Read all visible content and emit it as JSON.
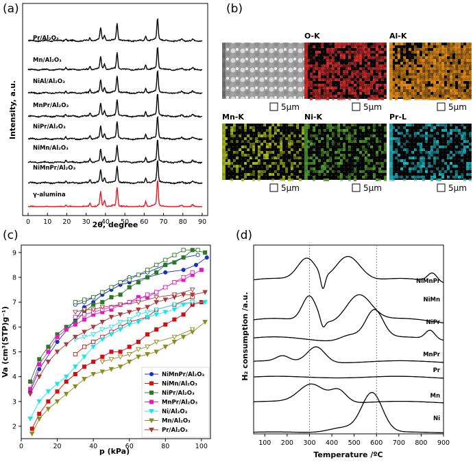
{
  "panels": {
    "a": "(a)",
    "b": "(b)",
    "c": "(c)",
    "d": "(d)"
  },
  "colors": {
    "black": "#000000",
    "red": "#e3191c",
    "blue": "#1530c8",
    "darkred": "#d01111",
    "green": "#2a7a22",
    "magenta": "#e21bbf",
    "cyan": "#19e3ee",
    "olive": "#8f8a1e",
    "brown": "#a83b3b",
    "sem": "#b9b9b9",
    "o_k": "#d22a2a",
    "al_k": "#e08a16",
    "mn_k": "#a8b81f",
    "ni_k": "#4f9a2e",
    "pr_l": "#1fb3bf"
  },
  "eds": {
    "maps": [
      {
        "key": "sem",
        "label": ""
      },
      {
        "key": "o_k",
        "label": "O-K"
      },
      {
        "key": "al_k",
        "label": "Al-K"
      },
      {
        "key": "mn_k",
        "label": "Mn-K"
      },
      {
        "key": "ni_k",
        "label": "Ni-K"
      },
      {
        "key": "pr_l",
        "label": "Pr-L"
      }
    ],
    "scale_label": "5μm"
  },
  "chart_data": [
    {
      "panel": "a",
      "type": "line",
      "xlabel": "2θ, degree",
      "ylabel": "Intensity, a.u.",
      "xlim": [
        0,
        90
      ],
      "xticks": [
        0,
        10,
        20,
        30,
        40,
        50,
        60,
        70,
        80,
        90
      ],
      "peaks": [
        {
          "x": 19.5,
          "h": 0.1
        },
        {
          "x": 32.0,
          "h": 0.15
        },
        {
          "x": 37.5,
          "h": 0.55
        },
        {
          "x": 39.5,
          "h": 0.22
        },
        {
          "x": 46.0,
          "h": 0.75
        },
        {
          "x": 60.8,
          "h": 0.22
        },
        {
          "x": 66.9,
          "h": 1.0
        },
        {
          "x": 79.5,
          "h": 0.06
        },
        {
          "x": 85.0,
          "h": 0.07
        }
      ],
      "series": [
        {
          "name": "Pr/Al2O3",
          "label": "Pr/Al₂O₃",
          "color": "#000000"
        },
        {
          "name": "Mn/Al2O3",
          "label": "Mn/Al₂O₃",
          "color": "#000000"
        },
        {
          "name": "NiAl/Al2O3",
          "label": "NiAl/Al₂O₃",
          "color": "#000000"
        },
        {
          "name": "MnPr/Al2O3",
          "label": "MnPr/Al₂O₃",
          "color": "#000000"
        },
        {
          "name": "NiPr/Al2O3",
          "label": "NiPr/Al₂O₃",
          "color": "#000000"
        },
        {
          "name": "NiMn/Al2O3",
          "label": "NiMn/Al₂O₃",
          "color": "#000000"
        },
        {
          "name": "NiMnPr/Al2O3",
          "label": "NiMnPr/Al₂O₃",
          "color": "#000000"
        },
        {
          "name": "γ-alumina",
          "label": "γ-alumina",
          "color": "#e3191c"
        }
      ]
    },
    {
      "panel": "c",
      "type": "scatter",
      "xlabel": "p (kPa)",
      "ylabel": "Va (cm³(STP)g⁻¹)",
      "xlim": [
        0,
        105
      ],
      "ylim": [
        1.5,
        9.3
      ],
      "xticks": [
        0,
        20,
        40,
        60,
        80,
        100
      ],
      "yticks": [
        2,
        3,
        4,
        5,
        6,
        7,
        8,
        9
      ],
      "legend": "lower-right",
      "series": [
        {
          "name": "NiMnPr/Al₂O₃",
          "color": "#1530c8",
          "marker": "circle",
          "ads_x": [
            5,
            10,
            20,
            30,
            35,
            40,
            45,
            50,
            55,
            60,
            70,
            80,
            90,
            97,
            103
          ],
          "ads_y": [
            3.4,
            4.3,
            5.4,
            6.3,
            6.8,
            7.0,
            7.3,
            7.5,
            7.7,
            7.8,
            8.0,
            8.2,
            8.3,
            8.5,
            8.8
          ],
          "des_x": [
            98,
            90,
            80,
            70,
            65,
            60,
            55,
            50,
            45,
            40,
            35,
            30
          ],
          "des_y": [
            8.9,
            8.8,
            8.5,
            8.2,
            8.1,
            8.0,
            7.8,
            7.6,
            7.4,
            7.2,
            7.0,
            6.9
          ]
        },
        {
          "name": "NiMn/Al₂O₃",
          "color": "#d01111",
          "marker": "square",
          "ads_x": [
            6,
            10,
            15,
            20,
            25,
            30,
            35,
            40,
            45,
            50,
            55,
            60,
            65,
            70,
            75,
            80,
            85,
            90,
            95,
            100
          ],
          "ads_y": [
            1.9,
            2.5,
            3.0,
            3.4,
            3.8,
            4.1,
            4.4,
            4.6,
            4.8,
            5.0,
            5.0,
            5.2,
            5.4,
            5.7,
            5.9,
            6.1,
            6.3,
            6.5,
            6.9,
            7.0
          ],
          "des_x": [
            95,
            85,
            75,
            70,
            60,
            55,
            50,
            45,
            40,
            35,
            30
          ],
          "des_y": [
            7.2,
            6.9,
            6.7,
            6.4,
            6.2,
            6.0,
            5.8,
            5.6,
            5.4,
            5.2,
            4.9
          ]
        },
        {
          "name": "NiPr/Al₂O₃",
          "color": "#2a7a22",
          "marker": "square",
          "ads_x": [
            5,
            10,
            15,
            20,
            25,
            30,
            35,
            40,
            45,
            50,
            55,
            60,
            65,
            70,
            75,
            80,
            85,
            90,
            95,
            102
          ],
          "ads_y": [
            3.8,
            4.7,
            5.2,
            5.7,
            6.0,
            6.2,
            6.6,
            6.9,
            7.0,
            7.2,
            7.3,
            7.6,
            7.8,
            8.0,
            8.2,
            8.5,
            8.6,
            8.8,
            9.1,
            9.0
          ],
          "des_x": [
            98,
            90,
            85,
            80,
            75,
            70,
            65,
            60,
            55,
            50,
            45,
            40,
            35,
            30
          ],
          "des_y": [
            9.1,
            9.1,
            8.9,
            8.7,
            8.5,
            8.3,
            8.1,
            7.9,
            7.8,
            7.6,
            7.4,
            7.2,
            7.1,
            7.0
          ]
        },
        {
          "name": "MnPr/Al₂O₃",
          "color": "#e21bbf",
          "marker": "square",
          "ads_x": [
            5,
            10,
            15,
            20,
            25,
            30,
            35,
            40,
            45,
            50,
            55,
            60,
            65,
            70,
            75,
            80,
            85,
            90,
            95,
            100
          ],
          "ads_y": [
            3.5,
            4.5,
            5.0,
            5.6,
            5.9,
            6.1,
            6.3,
            6.5,
            6.6,
            6.7,
            6.9,
            7.0,
            7.2,
            7.2,
            7.4,
            7.6,
            7.8,
            7.9,
            8.1,
            8.3
          ],
          "des_x": [
            95,
            90,
            85,
            80,
            75,
            70,
            65,
            60,
            55,
            50,
            45,
            40,
            35,
            30
          ],
          "des_y": [
            8.2,
            8.0,
            7.8,
            7.6,
            7.4,
            7.3,
            7.1,
            7.0,
            6.9,
            6.8,
            6.7,
            6.6,
            6.5,
            6.4
          ]
        },
        {
          "name": "Ni/Al₂O₃",
          "color": "#19e3ee",
          "marker": "triangle-down",
          "ads_x": [
            5,
            10,
            15,
            20,
            25,
            30,
            35,
            40,
            45,
            50,
            55,
            60,
            65,
            70,
            75,
            80,
            85,
            90,
            95,
            102
          ],
          "ads_y": [
            2.3,
            3.0,
            3.4,
            3.7,
            4.0,
            4.4,
            4.8,
            5.2,
            5.5,
            5.7,
            5.9,
            6.1,
            6.2,
            6.4,
            6.5,
            6.6,
            6.7,
            6.9,
            7.0,
            7.0
          ],
          "des_x": [
            95,
            85,
            75,
            70,
            65,
            60,
            55,
            50,
            45,
            40,
            35,
            30
          ],
          "des_y": [
            7.0,
            6.9,
            6.7,
            6.6,
            6.5,
            6.3,
            6.2,
            6.0,
            5.9,
            5.7,
            5.6,
            5.5
          ]
        },
        {
          "name": "Mn/Al₂O₃",
          "color": "#8f8a1e",
          "marker": "triangle-down",
          "ads_x": [
            6,
            10,
            15,
            20,
            25,
            30,
            35,
            40,
            45,
            50,
            55,
            60,
            65,
            70,
            75,
            80,
            85,
            90,
            95,
            102
          ],
          "ads_y": [
            1.7,
            2.3,
            2.7,
            3.0,
            3.3,
            3.6,
            3.9,
            4.1,
            4.2,
            4.3,
            4.4,
            4.6,
            4.8,
            4.9,
            5.0,
            5.2,
            5.4,
            5.6,
            5.8,
            6.2
          ],
          "des_x": [
            95,
            85,
            75,
            70,
            65,
            60,
            55,
            50,
            45
          ],
          "des_y": [
            5.9,
            5.6,
            5.4,
            5.2,
            5.1,
            4.9,
            4.8,
            4.7,
            4.6
          ]
        },
        {
          "name": "Pr/Al₂O₃",
          "color": "#a83b3b",
          "marker": "triangle-down",
          "ads_x": [
            5,
            10,
            15,
            20,
            25,
            30,
            35,
            40,
            45,
            50,
            55,
            60,
            65,
            70,
            75,
            80,
            85,
            90,
            95,
            102
          ],
          "ads_y": [
            3.3,
            4.0,
            4.6,
            5.0,
            5.3,
            5.6,
            5.8,
            6.0,
            6.2,
            6.4,
            6.5,
            6.6,
            6.7,
            6.8,
            7.0,
            7.1,
            7.2,
            7.3,
            7.3,
            7.4
          ],
          "des_x": [
            95,
            85,
            75,
            65,
            55,
            45,
            40,
            35,
            30
          ],
          "des_y": [
            7.5,
            7.3,
            7.2,
            7.0,
            6.9,
            6.8,
            6.7,
            6.7,
            6.6
          ]
        }
      ]
    },
    {
      "panel": "d",
      "type": "line",
      "xlabel": "Temperature /ºC",
      "ylabel": "H₂ consumption /a.u.",
      "xlim": [
        50,
        900
      ],
      "xticks": [
        100,
        200,
        300,
        400,
        500,
        600,
        700,
        800,
        900
      ],
      "ref_lines_x": [
        300,
        600
      ],
      "series": [
        {
          "name": "NiMnPr",
          "baseline": 0.9,
          "features": [
            {
              "c": 290,
              "w": 60,
              "h": 0.55
            },
            {
              "c": 360,
              "w": 14,
              "h": -0.35
            },
            {
              "c": 470,
              "w": 80,
              "h": 0.65
            },
            {
              "c": 850,
              "w": 30,
              "h": 0.2
            }
          ]
        },
        {
          "name": "NiMn",
          "baseline": 0.9,
          "features": [
            {
              "c": 300,
              "w": 45,
              "h": 0.65
            },
            {
              "c": 360,
              "w": 15,
              "h": -0.2
            },
            {
              "c": 520,
              "w": 80,
              "h": 0.7
            }
          ]
        },
        {
          "name": "NiPr",
          "baseline": 0.98,
          "features": [
            {
              "c": 590,
              "w": 55,
              "h": 1.0
            },
            {
              "c": 480,
              "w": 60,
              "h": 0.2
            },
            {
              "c": 840,
              "w": 30,
              "h": 0.3
            }
          ]
        },
        {
          "name": "MnPr",
          "baseline": 0.65,
          "features": [
            {
              "c": 330,
              "w": 55,
              "h": 0.75
            },
            {
              "c": 180,
              "w": 40,
              "h": 0.25
            }
          ]
        },
        {
          "name": "Pr",
          "baseline": 0.7,
          "features": [
            {
              "c": 420,
              "w": 200,
              "h": 0.04
            }
          ]
        },
        {
          "name": "Mn",
          "baseline": 0.6,
          "features": [
            {
              "c": 310,
              "w": 80,
              "h": 0.9
            },
            {
              "c": 430,
              "w": 50,
              "h": 0.6
            }
          ]
        },
        {
          "name": "Ni",
          "baseline": 0.4,
          "features": [
            {
              "c": 580,
              "w": 65,
              "h": 2.2
            },
            {
              "c": 450,
              "w": 90,
              "h": 0.3
            }
          ]
        }
      ]
    }
  ]
}
